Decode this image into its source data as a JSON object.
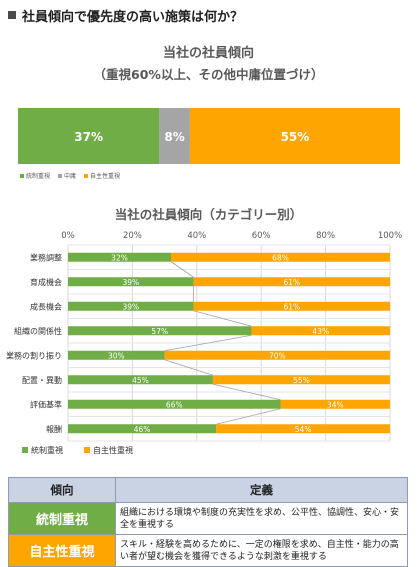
{
  "heading": "社員傾向で優先度の高い施策は何か？",
  "colors": {
    "green": "#70ad47",
    "gray": "#a5a5a5",
    "orange": "#ffa500",
    "grid": "#d9d9d9",
    "text": "#595959"
  },
  "chart_data": [
    {
      "type": "bar",
      "orientation": "horizontal",
      "stacked": true,
      "title": "当社の社員傾向",
      "subtitle": "（重視60%以上、その他中庸位置づけ）",
      "categories": [
        ""
      ],
      "series": [
        {
          "name": "統制重視",
          "values": [
            37
          ],
          "label": "37%",
          "color": "#70ad47"
        },
        {
          "name": "中庸",
          "values": [
            8
          ],
          "label": "8%",
          "color": "#a5a5a5"
        },
        {
          "name": "自主性重視",
          "values": [
            55
          ],
          "label": "55%",
          "color": "#ffa500"
        }
      ],
      "xlim": [
        0,
        100
      ],
      "legend": "bottom-left"
    },
    {
      "type": "bar",
      "orientation": "horizontal",
      "stacked": true,
      "title": "当社の社員傾向（カテゴリー別）",
      "categories": [
        "業務調整",
        "育成機会",
        "成長機会",
        "組織の関係性",
        "業務の割り振り",
        "配置・異動",
        "評価基準",
        "報酬"
      ],
      "ticks": [
        "0%",
        "20%",
        "40%",
        "60%",
        "80%",
        "100%"
      ],
      "series": [
        {
          "name": "統制重視",
          "values": [
            32,
            39,
            39,
            57,
            30,
            45,
            66,
            46
          ],
          "labels": [
            "32%",
            "39%",
            "39%",
            "57%",
            "30%",
            "45%",
            "66%",
            "46%"
          ],
          "color": "#70ad47"
        },
        {
          "name": "自主性重視",
          "values": [
            68,
            61,
            61,
            43,
            70,
            55,
            34,
            54
          ],
          "labels": [
            "68%",
            "61%",
            "61%",
            "43%",
            "70%",
            "55%",
            "34%",
            "54%"
          ],
          "color": "#ffa500"
        }
      ],
      "xlim": [
        0,
        100
      ],
      "grid": true,
      "legend": "bottom-left"
    }
  ],
  "table": {
    "headers": [
      "傾向",
      "定義"
    ],
    "rows": [
      {
        "tag": "統制重視",
        "color": "#70ad47",
        "desc": "組織における環境や制度の充実性を求め、公平性、協調性、安心・安全を重視する"
      },
      {
        "tag": "自主性重視",
        "color": "#ffa500",
        "desc": "スキル・経験を高めるために、一定の権限を求め、自主性・能力の高い者が望む機会を獲得できるような刺激を重視する"
      }
    ]
  }
}
